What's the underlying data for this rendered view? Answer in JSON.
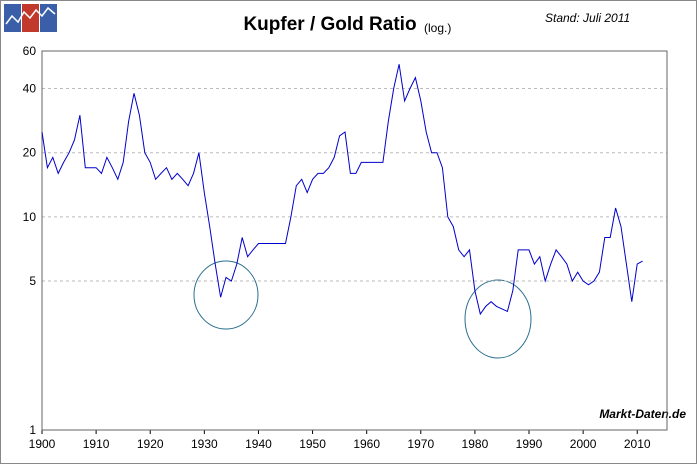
{
  "chart_data": {
    "type": "line",
    "title": "Kupfer / Gold Ratio",
    "title_note": "(log.)",
    "annotation": "Stand: Juli 2011",
    "source": "Markt-Daten.de",
    "x": [
      1900,
      1901,
      1902,
      1903,
      1904,
      1905,
      1906,
      1907,
      1908,
      1909,
      1910,
      1911,
      1912,
      1913,
      1914,
      1915,
      1916,
      1917,
      1918,
      1919,
      1920,
      1921,
      1922,
      1923,
      1924,
      1925,
      1926,
      1927,
      1928,
      1929,
      1930,
      1931,
      1932,
      1933,
      1934,
      1935,
      1936,
      1937,
      1938,
      1939,
      1940,
      1941,
      1942,
      1943,
      1944,
      1945,
      1946,
      1947,
      1948,
      1949,
      1950,
      1951,
      1952,
      1953,
      1954,
      1955,
      1956,
      1957,
      1958,
      1959,
      1960,
      1961,
      1962,
      1963,
      1964,
      1965,
      1966,
      1967,
      1968,
      1969,
      1970,
      1971,
      1972,
      1973,
      1974,
      1975,
      1976,
      1977,
      1978,
      1979,
      1980,
      1981,
      1982,
      1983,
      1984,
      1985,
      1986,
      1987,
      1988,
      1989,
      1990,
      1991,
      1992,
      1993,
      1994,
      1995,
      1996,
      1997,
      1998,
      1999,
      2000,
      2001,
      2002,
      2003,
      2004,
      2005,
      2006,
      2007,
      2008,
      2009,
      2010,
      2011
    ],
    "values": [
      25,
      17,
      19,
      16,
      18,
      20,
      23,
      30,
      17,
      17,
      17,
      16,
      19,
      17,
      15,
      18,
      28,
      38,
      30,
      20,
      18,
      15,
      16,
      17,
      15,
      16,
      15,
      14,
      16,
      20,
      13,
      9,
      6,
      4.2,
      5.2,
      5,
      6,
      8,
      6.5,
      7,
      7.5,
      7.5,
      7.5,
      7.5,
      7.5,
      7.5,
      10,
      14,
      15,
      13,
      15,
      16,
      16,
      17,
      19,
      24,
      25,
      16,
      16,
      18,
      18,
      18,
      18,
      18,
      28,
      40,
      52,
      35,
      40,
      45,
      35,
      25,
      20,
      20,
      17,
      10,
      9,
      7,
      6.5,
      7,
      4.5,
      3.5,
      3.8,
      4,
      3.8,
      3.7,
      3.6,
      4.5,
      7,
      7,
      7,
      6,
      6.5,
      5,
      6,
      7,
      6.5,
      6,
      5,
      5.5,
      5,
      4.8,
      5,
      5.5,
      8,
      8,
      11,
      9,
      6,
      4,
      6,
      6.2
    ],
    "color": "#0000cc",
    "log_scale": true,
    "grid": true,
    "xlim": [
      1900,
      2015.5
    ],
    "xticks": [
      1900,
      1910,
      1920,
      1930,
      1940,
      1950,
      1960,
      1970,
      1980,
      1990,
      2000,
      2010
    ],
    "ylim": [
      1,
      60
    ],
    "yticks": [
      1,
      5,
      10,
      20,
      40,
      60
    ]
  }
}
